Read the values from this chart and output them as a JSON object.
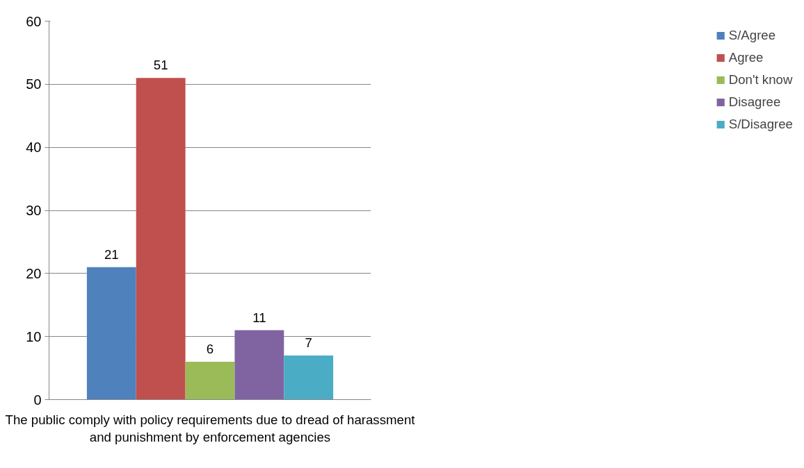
{
  "chart_data": {
    "type": "bar",
    "categories": [
      "The public comply with policy requirements due to dread of harassment and punishment by enforcement agencies"
    ],
    "series": [
      {
        "name": "S/Agree",
        "color": "#4f81bd",
        "values": [
          21
        ]
      },
      {
        "name": "Agree",
        "color": "#c0504d",
        "values": [
          51
        ]
      },
      {
        "name": "Don't know",
        "color": "#9bbb59",
        "values": [
          6
        ]
      },
      {
        "name": "Disagree",
        "color": "#8064a2",
        "values": [
          11
        ]
      },
      {
        "name": "S/Disagree",
        "color": "#4bacc6",
        "values": [
          7
        ]
      }
    ],
    "ylim": [
      0,
      60
    ],
    "yticks": [
      0,
      10,
      20,
      30,
      40,
      50,
      60
    ],
    "grid": "y",
    "legend": "right",
    "data_labels": true
  }
}
